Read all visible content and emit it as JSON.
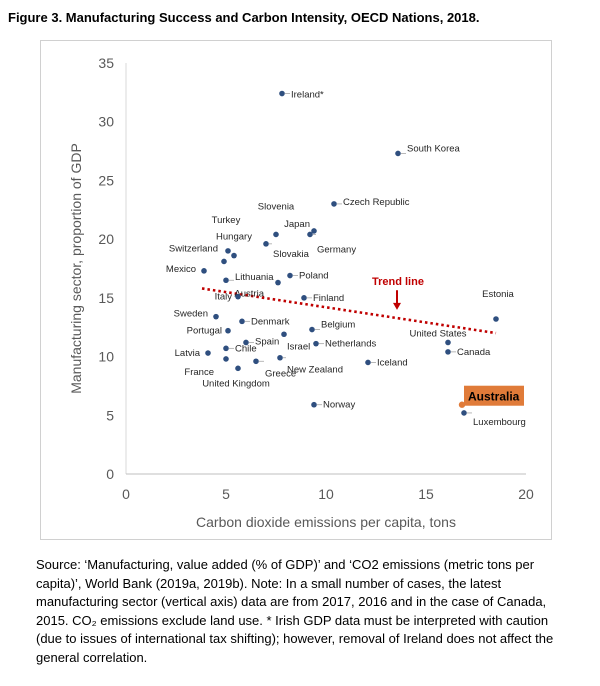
{
  "figure_title": "Figure 3. Manufacturing Success and Carbon Intensity, OECD Nations, 2018.",
  "source_note": "Source: ‘Manufacturing, value added (% of GDP)’ and ‘CO2 emissions (metric tons per capita)’, World Bank (2019a, 2019b). Note: In a small number of cases, the latest manufacturing sector (vertical axis) data are from 2017, 2016 and in the case of Canada, 2015. CO₂ emissions exclude land use. * Irish GDP data must be interpreted with caution (due to issues of international tax shifting); however, removal of Ireland does not affect the general correlation.",
  "colors": {
    "points": "#2f4f7f",
    "highlight": "#e07b39",
    "trend": "#c00000",
    "trend_label": "#c00000"
  },
  "chart_data": {
    "type": "scatter",
    "xlabel": "Carbon dioxide emissions per capita, tons",
    "ylabel": "Manufacturing sector, proportion of GDP",
    "xlim": [
      0,
      20
    ],
    "ylim": [
      0,
      35
    ],
    "xticks": [
      0,
      5,
      10,
      15,
      20
    ],
    "yticks": [
      0,
      5,
      10,
      15,
      20,
      25,
      30,
      35
    ],
    "grid": false,
    "points": [
      {
        "label": "Ireland*",
        "x": 7.8,
        "y": 32.4
      },
      {
        "label": "South Korea",
        "x": 13.6,
        "y": 27.3
      },
      {
        "label": "Czech Republic",
        "x": 10.4,
        "y": 23.0
      },
      {
        "label": "Japan",
        "x": 9.4,
        "y": 20.7
      },
      {
        "label": "Germany",
        "x": 9.2,
        "y": 20.4
      },
      {
        "label": "Slovenia",
        "x": 7.5,
        "y": 20.4
      },
      {
        "label": "Slovakia",
        "x": 7.0,
        "y": 19.6
      },
      {
        "label": "Turkey",
        "x": 5.1,
        "y": 19.0
      },
      {
        "label": "Hungary",
        "x": 5.4,
        "y": 18.6
      },
      {
        "label": "Switzerland",
        "x": 4.9,
        "y": 18.1
      },
      {
        "label": "Mexico",
        "x": 3.9,
        "y": 17.3
      },
      {
        "label": "Lithuania",
        "x": 5.0,
        "y": 16.5
      },
      {
        "label": "Poland",
        "x": 8.2,
        "y": 16.9
      },
      {
        "label": "Austria",
        "x": 7.6,
        "y": 16.3
      },
      {
        "label": "Finland",
        "x": 8.9,
        "y": 15.0
      },
      {
        "label": "Italy",
        "x": 5.6,
        "y": 15.1
      },
      {
        "label": "Estonia",
        "x": 18.5,
        "y": 13.2
      },
      {
        "label": "United States",
        "x": 16.1,
        "y": 11.2
      },
      {
        "label": "Canada",
        "x": 16.1,
        "y": 10.4
      },
      {
        "label": "Sweden",
        "x": 4.5,
        "y": 13.4
      },
      {
        "label": "Denmark",
        "x": 5.8,
        "y": 13.0
      },
      {
        "label": "Portugal",
        "x": 5.1,
        "y": 12.2
      },
      {
        "label": "Belgium",
        "x": 9.3,
        "y": 12.3
      },
      {
        "label": "Spain",
        "x": 6.0,
        "y": 11.2
      },
      {
        "label": "Israel",
        "x": 7.9,
        "y": 11.9
      },
      {
        "label": "Netherlands",
        "x": 9.5,
        "y": 11.1
      },
      {
        "label": "Chile",
        "x": 5.0,
        "y": 10.7
      },
      {
        "label": "Latvia",
        "x": 4.1,
        "y": 10.3
      },
      {
        "label": "France",
        "x": 5.0,
        "y": 9.8
      },
      {
        "label": "New Zealand",
        "x": 7.7,
        "y": 9.9
      },
      {
        "label": "Greece",
        "x": 6.5,
        "y": 9.6
      },
      {
        "label": "United Kingdom",
        "x": 5.6,
        "y": 9.0
      },
      {
        "label": "Iceland",
        "x": 12.1,
        "y": 9.5
      },
      {
        "label": "Norway",
        "x": 9.4,
        "y": 5.9
      },
      {
        "label": "Australia",
        "x": 16.8,
        "y": 5.9,
        "highlight": true
      },
      {
        "label": "Luxembourg",
        "x": 16.9,
        "y": 5.2
      }
    ],
    "trend_line": {
      "label": "Trend line",
      "x": [
        3.8,
        18.5
      ],
      "y": [
        15.8,
        12.0
      ],
      "style": "dotted"
    }
  }
}
